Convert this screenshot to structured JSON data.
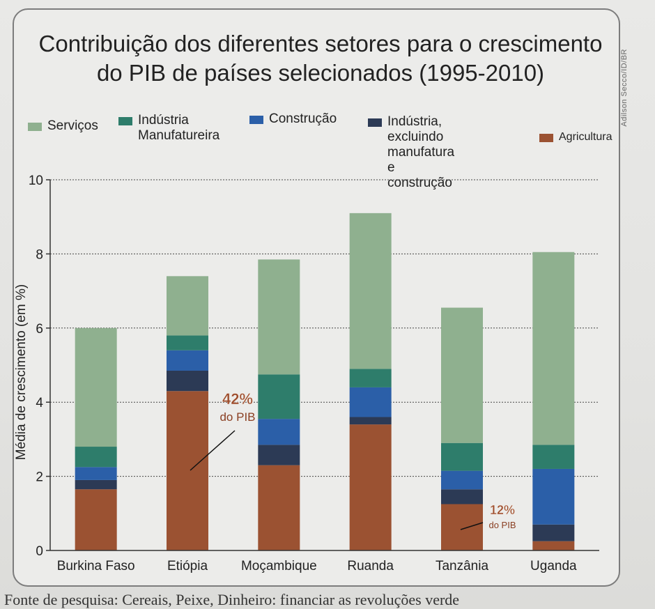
{
  "credit": "Adilson Secco/ID/BR",
  "footer": "Fonte de pesquisa: Cereais, Peixe, Dinheiro: financiar as revoluções verde",
  "colors": {
    "servicos": "#8fb08f",
    "industria_manufatureira": "#2e7d6b",
    "construcao": "#2b5fa8",
    "industria_excluindo": "#2c3a55",
    "agricultura": "#9b5232"
  },
  "chart_data": {
    "type": "bar",
    "stacked": true,
    "title": "Contribuição dos diferentes setores para o crescimento do PIB de países selecionados (1995-2010)",
    "title_line1": "Contribuição dos diferentes setores para o crescimento",
    "title_line2": "do PIB de países selecionados (1995-2010)",
    "xlabel": "",
    "ylabel": "Média de crescimento (em %)",
    "ylim": [
      0,
      10
    ],
    "yticks": [
      "0",
      "2",
      "4",
      "6",
      "8",
      "10"
    ],
    "grid": true,
    "legend_position": "top",
    "categories": [
      "Burkina Faso",
      "Etiópia",
      "Moçambique",
      "Ruanda",
      "Tanzânia",
      "Uganda"
    ],
    "series": [
      {
        "name": "Agricultura",
        "color_key": "agricultura",
        "values": [
          1.65,
          4.3,
          2.3,
          3.4,
          1.25,
          0.25
        ]
      },
      {
        "name": "Indústria, excluindo manufatura e construção",
        "color_key": "industria_excluindo",
        "values": [
          0.25,
          0.55,
          0.55,
          0.2,
          0.4,
          0.45
        ]
      },
      {
        "name": "Construção",
        "color_key": "construcao",
        "values": [
          0.35,
          0.55,
          0.7,
          0.8,
          0.5,
          1.5
        ]
      },
      {
        "name": "Indústria Manufatureira",
        "color_key": "industria_manufatureira",
        "values": [
          0.55,
          0.4,
          1.2,
          0.5,
          0.75,
          0.65
        ]
      },
      {
        "name": "Serviços",
        "color_key": "servicos",
        "values": [
          3.2,
          1.6,
          3.1,
          4.2,
          3.65,
          5.2
        ]
      }
    ],
    "legend": [
      {
        "label": "Serviços",
        "color_key": "servicos"
      },
      {
        "label": "Indústria Manufatureira",
        "line1": "Indústria",
        "line2": "Manufatureira",
        "color_key": "industria_manufatureira"
      },
      {
        "label": "Construção",
        "color_key": "construcao"
      },
      {
        "label": "Indústria, excluindo manufatura e construção",
        "line1": "Indústria, excluindo",
        "line2": "manufatura e",
        "line3": "construção",
        "color_key": "industria_excluindo"
      },
      {
        "label": "Agricultura",
        "color_key": "agricultura"
      }
    ],
    "annotations": [
      {
        "category": "Etiópia",
        "value": "42%",
        "text": "do PIB"
      },
      {
        "category": "Tanzânia",
        "value": "12%",
        "text": "do PIB"
      }
    ]
  }
}
